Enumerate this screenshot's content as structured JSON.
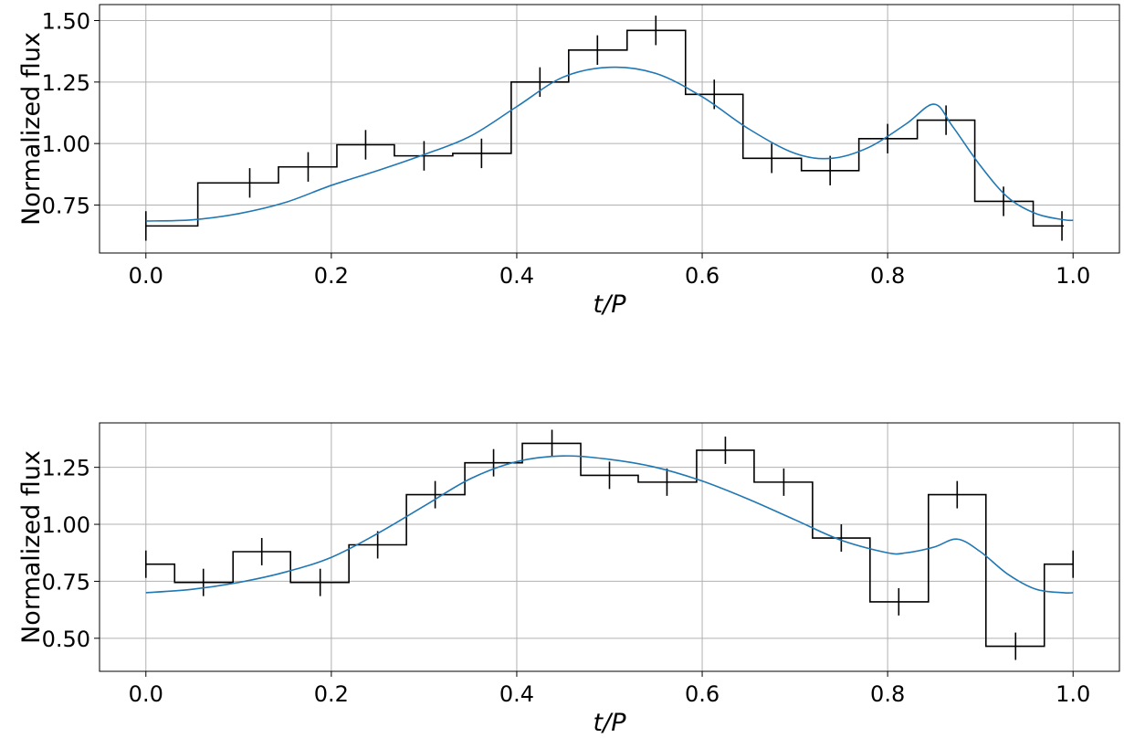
{
  "chart_data": [
    {
      "type": "line",
      "xlabel": "t/P",
      "ylabel": "Normalized flux",
      "xlim": [
        -0.05,
        1.05
      ],
      "ylim": [
        0.555,
        1.565
      ],
      "xticks": [
        "0.0",
        "0.2",
        "0.4",
        "0.6",
        "0.8",
        "1.0"
      ],
      "yticks": [
        "0.75",
        "1.00",
        "1.25",
        "1.50"
      ],
      "grid": true,
      "series": [
        {
          "style": "step-histogram",
          "color": "#000000",
          "bin_edges": [
            0.0,
            0.056,
            0.143,
            0.206,
            0.268,
            0.331,
            0.394,
            0.456,
            0.519,
            0.582,
            0.644,
            0.707,
            0.769,
            0.832,
            0.894,
            0.957,
            0.99
          ],
          "values": [
            0.665,
            0.84,
            0.905,
            0.995,
            0.95,
            0.96,
            1.25,
            1.38,
            1.46,
            1.2,
            0.94,
            0.89,
            1.02,
            1.095,
            0.765,
            0.665
          ],
          "points_x": [
            0.0,
            0.112,
            0.175,
            0.237,
            0.3,
            0.362,
            0.425,
            0.487,
            0.55,
            0.613,
            0.675,
            0.738,
            0.8,
            0.863,
            0.925,
            0.988
          ],
          "points_y": [
            0.665,
            0.84,
            0.905,
            0.995,
            0.95,
            0.96,
            1.25,
            1.38,
            1.46,
            1.2,
            0.94,
            0.89,
            1.02,
            1.095,
            0.765,
            0.665
          ],
          "yerr": 0.06
        },
        {
          "style": "model-curve",
          "color": "#1f77b4",
          "x": [
            0.0,
            0.05,
            0.1,
            0.15,
            0.2,
            0.25,
            0.3,
            0.35,
            0.4,
            0.45,
            0.5,
            0.55,
            0.6,
            0.65,
            0.7,
            0.74,
            0.78,
            0.82,
            0.85,
            0.87,
            0.9,
            0.93,
            0.96,
            0.99,
            1.0
          ],
          "y": [
            0.685,
            0.69,
            0.715,
            0.76,
            0.83,
            0.89,
            0.955,
            1.03,
            1.15,
            1.27,
            1.31,
            1.285,
            1.19,
            1.06,
            0.96,
            0.94,
            0.985,
            1.08,
            1.16,
            1.07,
            0.91,
            0.78,
            0.715,
            0.69,
            0.688
          ]
        }
      ]
    },
    {
      "type": "line",
      "xlabel": "t/P",
      "ylabel": "Normalized flux",
      "xlim": [
        -0.05,
        1.05
      ],
      "ylim": [
        0.355,
        1.445
      ],
      "xticks": [
        "0.0",
        "0.2",
        "0.4",
        "0.6",
        "0.8",
        "1.0"
      ],
      "yticks": [
        "0.50",
        "0.75",
        "1.00",
        "1.25"
      ],
      "grid": true,
      "series": [
        {
          "style": "step-histogram",
          "color": "#000000",
          "bin_edges": [
            0.0,
            0.031,
            0.094,
            0.156,
            0.219,
            0.281,
            0.344,
            0.406,
            0.469,
            0.531,
            0.594,
            0.656,
            0.719,
            0.781,
            0.844,
            0.906,
            0.969,
            1.0
          ],
          "values": [
            0.825,
            0.745,
            0.88,
            0.745,
            0.91,
            1.13,
            1.27,
            1.355,
            1.215,
            1.185,
            1.325,
            1.185,
            0.94,
            0.66,
            1.13,
            0.465,
            0.825
          ],
          "points_x": [
            0.0,
            0.062,
            0.125,
            0.188,
            0.25,
            0.312,
            0.375,
            0.438,
            0.5,
            0.562,
            0.625,
            0.688,
            0.75,
            0.812,
            0.875,
            0.938,
            1.0
          ],
          "points_y": [
            0.825,
            0.745,
            0.88,
            0.745,
            0.91,
            1.13,
            1.27,
            1.355,
            1.215,
            1.185,
            1.325,
            1.185,
            0.94,
            0.66,
            1.13,
            0.465,
            0.825
          ],
          "yerr": 0.06
        },
        {
          "style": "model-curve",
          "color": "#1f77b4",
          "x": [
            0.0,
            0.05,
            0.1,
            0.15,
            0.2,
            0.25,
            0.3,
            0.35,
            0.4,
            0.45,
            0.5,
            0.55,
            0.6,
            0.65,
            0.7,
            0.75,
            0.8,
            0.82,
            0.85,
            0.875,
            0.9,
            0.93,
            0.96,
            0.99,
            1.0
          ],
          "y": [
            0.7,
            0.715,
            0.745,
            0.79,
            0.855,
            0.96,
            1.08,
            1.2,
            1.275,
            1.3,
            1.285,
            1.25,
            1.19,
            1.11,
            1.02,
            0.93,
            0.875,
            0.875,
            0.9,
            0.935,
            0.88,
            0.78,
            0.715,
            0.7,
            0.7
          ]
        }
      ]
    }
  ]
}
